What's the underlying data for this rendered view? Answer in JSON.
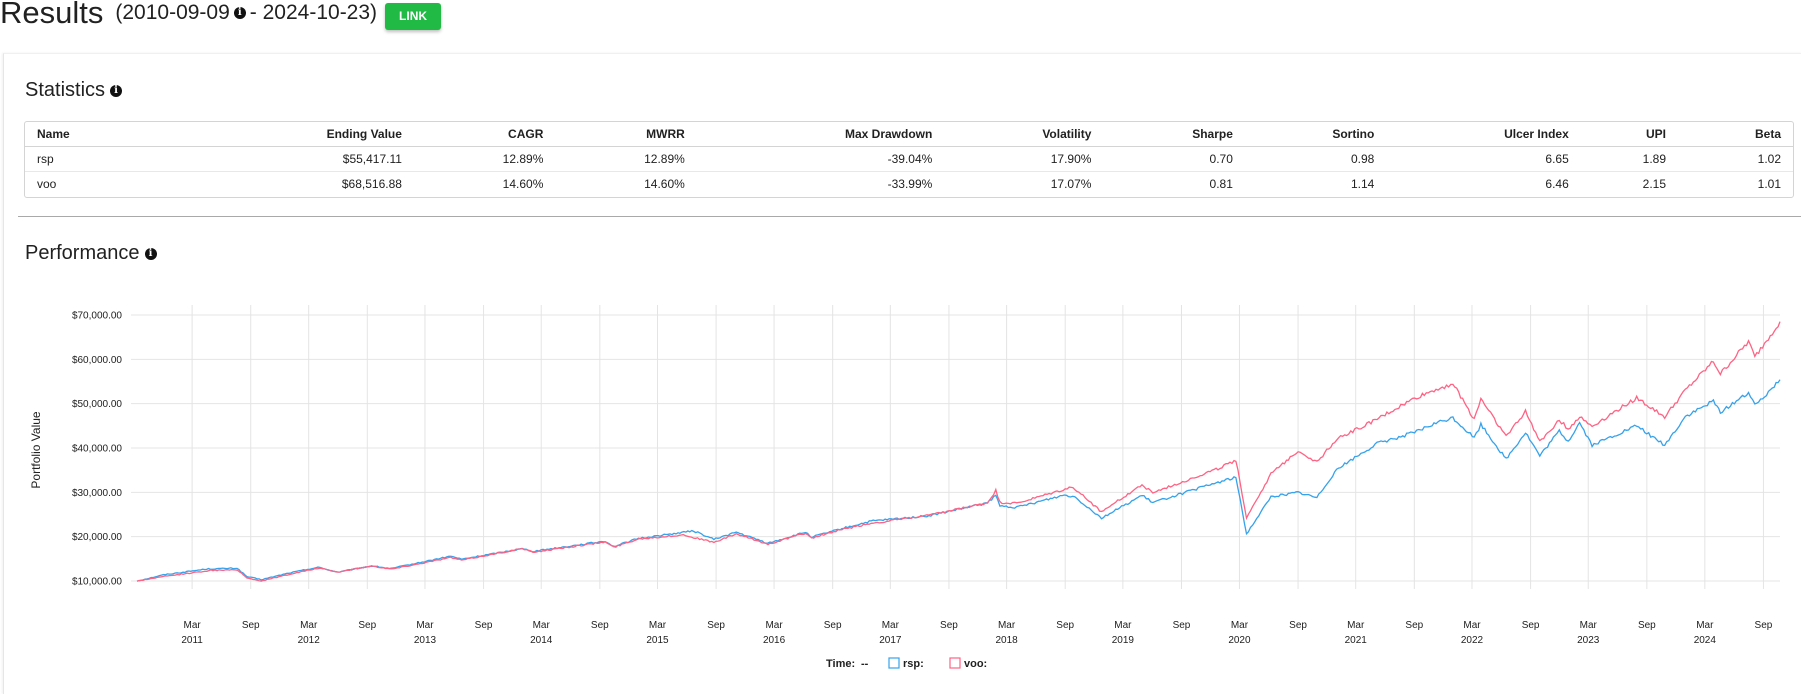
{
  "header": {
    "title": "Results",
    "date_open": "(2010-09-09",
    "date_sep": "- 2024-10-23)",
    "link_label": "LINK",
    "info_icon": "info-icon"
  },
  "statistics": {
    "title": "Statistics",
    "columns": [
      "Name",
      "Ending Value",
      "CAGR",
      "MWRR",
      "Max Drawdown",
      "Volatility",
      "Sharpe",
      "Sortino",
      "Ulcer Index",
      "UPI",
      "Beta"
    ],
    "rows": [
      [
        "rsp",
        "$55,417.11",
        "12.89%",
        "12.89%",
        "-39.04%",
        "17.90%",
        "0.70",
        "0.98",
        "6.65",
        "1.89",
        "1.02"
      ],
      [
        "voo",
        "$68,516.88",
        "14.60%",
        "14.60%",
        "-33.99%",
        "17.07%",
        "0.81",
        "1.14",
        "6.46",
        "2.15",
        "1.01"
      ]
    ]
  },
  "performance": {
    "title": "Performance"
  },
  "chart_data": {
    "type": "line",
    "ylabel": "Portfolio Value",
    "ylim": [
      10000,
      70000
    ],
    "y_ticks": [
      10000,
      20000,
      30000,
      40000,
      50000,
      60000,
      70000
    ],
    "y_tick_labels": [
      "$10,000.00",
      "$20,000.00",
      "$30,000.00",
      "$40,000.00",
      "$50,000.00",
      "$60,000.00",
      "$70,000.00"
    ],
    "xlim": [
      "2010-09-09",
      "2024-10-23"
    ],
    "x_ticks": [
      {
        "date": "2011-03-01",
        "month": "Mar",
        "year": "2011"
      },
      {
        "date": "2011-09-01",
        "month": "Sep",
        "year": ""
      },
      {
        "date": "2012-03-01",
        "month": "Mar",
        "year": "2012"
      },
      {
        "date": "2012-09-01",
        "month": "Sep",
        "year": ""
      },
      {
        "date": "2013-03-01",
        "month": "Mar",
        "year": "2013"
      },
      {
        "date": "2013-09-01",
        "month": "Sep",
        "year": ""
      },
      {
        "date": "2014-03-01",
        "month": "Mar",
        "year": "2014"
      },
      {
        "date": "2014-09-01",
        "month": "Sep",
        "year": ""
      },
      {
        "date": "2015-03-01",
        "month": "Mar",
        "year": "2015"
      },
      {
        "date": "2015-09-01",
        "month": "Sep",
        "year": ""
      },
      {
        "date": "2016-03-01",
        "month": "Mar",
        "year": "2016"
      },
      {
        "date": "2016-09-01",
        "month": "Sep",
        "year": ""
      },
      {
        "date": "2017-03-01",
        "month": "Mar",
        "year": "2017"
      },
      {
        "date": "2017-09-01",
        "month": "Sep",
        "year": ""
      },
      {
        "date": "2018-03-01",
        "month": "Mar",
        "year": "2018"
      },
      {
        "date": "2018-09-01",
        "month": "Sep",
        "year": ""
      },
      {
        "date": "2019-03-01",
        "month": "Mar",
        "year": "2019"
      },
      {
        "date": "2019-09-01",
        "month": "Sep",
        "year": ""
      },
      {
        "date": "2020-03-01",
        "month": "Mar",
        "year": "2020"
      },
      {
        "date": "2020-09-01",
        "month": "Sep",
        "year": ""
      },
      {
        "date": "2021-03-01",
        "month": "Mar",
        "year": "2021"
      },
      {
        "date": "2021-09-01",
        "month": "Sep",
        "year": ""
      },
      {
        "date": "2022-03-01",
        "month": "Mar",
        "year": "2022"
      },
      {
        "date": "2022-09-01",
        "month": "Sep",
        "year": ""
      },
      {
        "date": "2023-03-01",
        "month": "Mar",
        "year": "2023"
      },
      {
        "date": "2023-09-01",
        "month": "Sep",
        "year": ""
      },
      {
        "date": "2024-03-01",
        "month": "Mar",
        "year": "2024"
      },
      {
        "date": "2024-09-01",
        "month": "Sep",
        "year": ""
      }
    ],
    "grid": true,
    "legend": {
      "placement": "bottom-center",
      "time_label": "Time:",
      "time_value": "--",
      "entries": [
        "rsp:",
        "voo:"
      ]
    },
    "series": [
      {
        "name": "rsp",
        "color": "#36a2eb",
        "points": [
          [
            "2010-09-09",
            10000
          ],
          [
            "2010-12-01",
            11400
          ],
          [
            "2011-04-15",
            12700
          ],
          [
            "2011-07-20",
            12900
          ],
          [
            "2011-08-20",
            11000
          ],
          [
            "2011-10-04",
            10300
          ],
          [
            "2011-12-30",
            11800
          ],
          [
            "2012-03-30",
            13100
          ],
          [
            "2012-06-01",
            12000
          ],
          [
            "2012-09-14",
            13400
          ],
          [
            "2012-11-15",
            12800
          ],
          [
            "2012-12-31",
            13500
          ],
          [
            "2013-05-21",
            15600
          ],
          [
            "2013-06-24",
            14900
          ],
          [
            "2013-12-31",
            17300
          ],
          [
            "2014-02-03",
            16700
          ],
          [
            "2014-09-18",
            19000
          ],
          [
            "2014-10-15",
            17800
          ],
          [
            "2014-12-31",
            19600
          ],
          [
            "2015-06-23",
            21300
          ],
          [
            "2015-08-25",
            19400
          ],
          [
            "2015-11-03",
            21000
          ],
          [
            "2016-02-11",
            18500
          ],
          [
            "2016-06-08",
            21000
          ],
          [
            "2016-06-27",
            19900
          ],
          [
            "2016-09-30",
            21800
          ],
          [
            "2016-12-31",
            23500
          ],
          [
            "2017-06-30",
            24700
          ],
          [
            "2017-12-31",
            27600
          ],
          [
            "2018-01-26",
            29300
          ],
          [
            "2018-02-08",
            26900
          ],
          [
            "2018-04-02",
            26600
          ],
          [
            "2018-08-29",
            29400
          ],
          [
            "2018-10-01",
            29000
          ],
          [
            "2018-12-24",
            24200
          ],
          [
            "2019-04-30",
            29300
          ],
          [
            "2019-06-03",
            27700
          ],
          [
            "2019-12-31",
            32400
          ],
          [
            "2020-02-19",
            33400
          ],
          [
            "2020-03-23",
            20600
          ],
          [
            "2020-06-08",
            29000
          ],
          [
            "2020-09-01",
            30000
          ],
          [
            "2020-10-30",
            28800
          ],
          [
            "2020-12-31",
            35200
          ],
          [
            "2021-05-07",
            41000
          ],
          [
            "2021-09-02",
            43500
          ],
          [
            "2021-11-08",
            45600
          ],
          [
            "2021-12-31",
            46800
          ],
          [
            "2022-03-08",
            42300
          ],
          [
            "2022-03-29",
            45300
          ],
          [
            "2022-06-16",
            37500
          ],
          [
            "2022-08-16",
            43500
          ],
          [
            "2022-09-30",
            38200
          ],
          [
            "2022-11-30",
            43800
          ],
          [
            "2022-12-28",
            41500
          ],
          [
            "2023-02-02",
            45700
          ],
          [
            "2023-03-13",
            40600
          ],
          [
            "2023-07-31",
            45000
          ],
          [
            "2023-10-27",
            40600
          ],
          [
            "2023-12-31",
            47100
          ],
          [
            "2024-03-28",
            50500
          ],
          [
            "2024-04-19",
            48100
          ],
          [
            "2024-07-16",
            52500
          ],
          [
            "2024-08-05",
            49500
          ],
          [
            "2024-10-23",
            55417
          ]
        ]
      },
      {
        "name": "voo",
        "color": "#ff6384",
        "points": [
          [
            "2010-09-09",
            10000
          ],
          [
            "2010-12-01",
            11000
          ],
          [
            "2011-04-29",
            12400
          ],
          [
            "2011-07-22",
            12500
          ],
          [
            "2011-08-20",
            10700
          ],
          [
            "2011-10-04",
            10000
          ],
          [
            "2011-12-30",
            11500
          ],
          [
            "2012-04-02",
            12900
          ],
          [
            "2012-06-01",
            12000
          ],
          [
            "2012-09-14",
            13400
          ],
          [
            "2012-11-15",
            12700
          ],
          [
            "2012-12-31",
            13300
          ],
          [
            "2013-05-21",
            15300
          ],
          [
            "2013-06-24",
            14700
          ],
          [
            "2013-12-31",
            17300
          ],
          [
            "2014-02-03",
            16500
          ],
          [
            "2014-09-18",
            18800
          ],
          [
            "2014-10-15",
            17600
          ],
          [
            "2014-12-31",
            19500
          ],
          [
            "2015-05-21",
            20400
          ],
          [
            "2015-08-25",
            18700
          ],
          [
            "2015-11-03",
            20600
          ],
          [
            "2016-02-11",
            18300
          ],
          [
            "2016-06-08",
            20800
          ],
          [
            "2016-06-27",
            19700
          ],
          [
            "2016-09-30",
            21600
          ],
          [
            "2016-12-31",
            23000
          ],
          [
            "2017-06-30",
            24800
          ],
          [
            "2017-12-31",
            27600
          ],
          [
            "2018-01-26",
            30400
          ],
          [
            "2018-02-08",
            27700
          ],
          [
            "2018-04-02",
            27500
          ],
          [
            "2018-09-20",
            31100
          ],
          [
            "2018-10-01",
            30800
          ],
          [
            "2018-12-24",
            25600
          ],
          [
            "2019-04-30",
            31700
          ],
          [
            "2019-06-03",
            29900
          ],
          [
            "2019-12-31",
            35500
          ],
          [
            "2020-02-19",
            37300
          ],
          [
            "2020-03-23",
            24300
          ],
          [
            "2020-06-08",
            34100
          ],
          [
            "2020-09-01",
            39400
          ],
          [
            "2020-10-30",
            36800
          ],
          [
            "2020-12-31",
            42000
          ],
          [
            "2021-05-07",
            46500
          ],
          [
            "2021-09-02",
            51200
          ],
          [
            "2021-11-08",
            53200
          ],
          [
            "2021-12-31",
            54500
          ],
          [
            "2022-03-08",
            46500
          ],
          [
            "2022-03-29",
            51200
          ],
          [
            "2022-06-16",
            42600
          ],
          [
            "2022-08-16",
            48200
          ],
          [
            "2022-09-30",
            41500
          ],
          [
            "2022-11-30",
            46300
          ],
          [
            "2022-12-28",
            44300
          ],
          [
            "2023-02-02",
            47000
          ],
          [
            "2023-03-13",
            44900
          ],
          [
            "2023-07-31",
            51300
          ],
          [
            "2023-10-27",
            47000
          ],
          [
            "2023-12-31",
            53000
          ],
          [
            "2024-03-28",
            59500
          ],
          [
            "2024-04-19",
            56700
          ],
          [
            "2024-07-16",
            64000
          ],
          [
            "2024-08-05",
            60500
          ],
          [
            "2024-10-23",
            68517
          ]
        ]
      }
    ]
  }
}
